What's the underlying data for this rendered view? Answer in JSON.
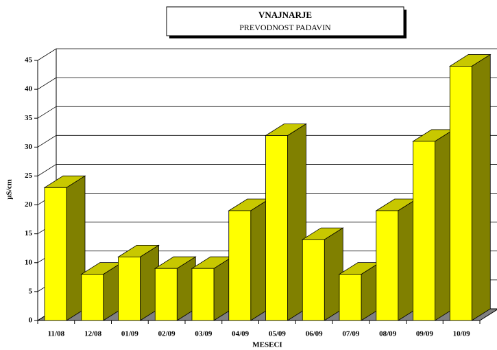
{
  "chart_data": {
    "type": "bar3d",
    "title": "VNAJNARJE",
    "subtitle": "PREVODNOST PADAVIN",
    "x_label": "MESECI",
    "y_label": "µS/cm",
    "categories": [
      "11/08",
      "12/08",
      "01/09",
      "02/09",
      "03/09",
      "04/09",
      "05/09",
      "06/09",
      "07/09",
      "08/09",
      "09/09",
      "10/09"
    ],
    "values": [
      23,
      8,
      11,
      9,
      9,
      19,
      32,
      14,
      8,
      19,
      31,
      44
    ],
    "color": "#ffff00",
    "ylim": [
      0,
      45
    ],
    "yticks": [
      0,
      5,
      10,
      15,
      20,
      25,
      30,
      35,
      40,
      45
    ],
    "grid": true
  }
}
